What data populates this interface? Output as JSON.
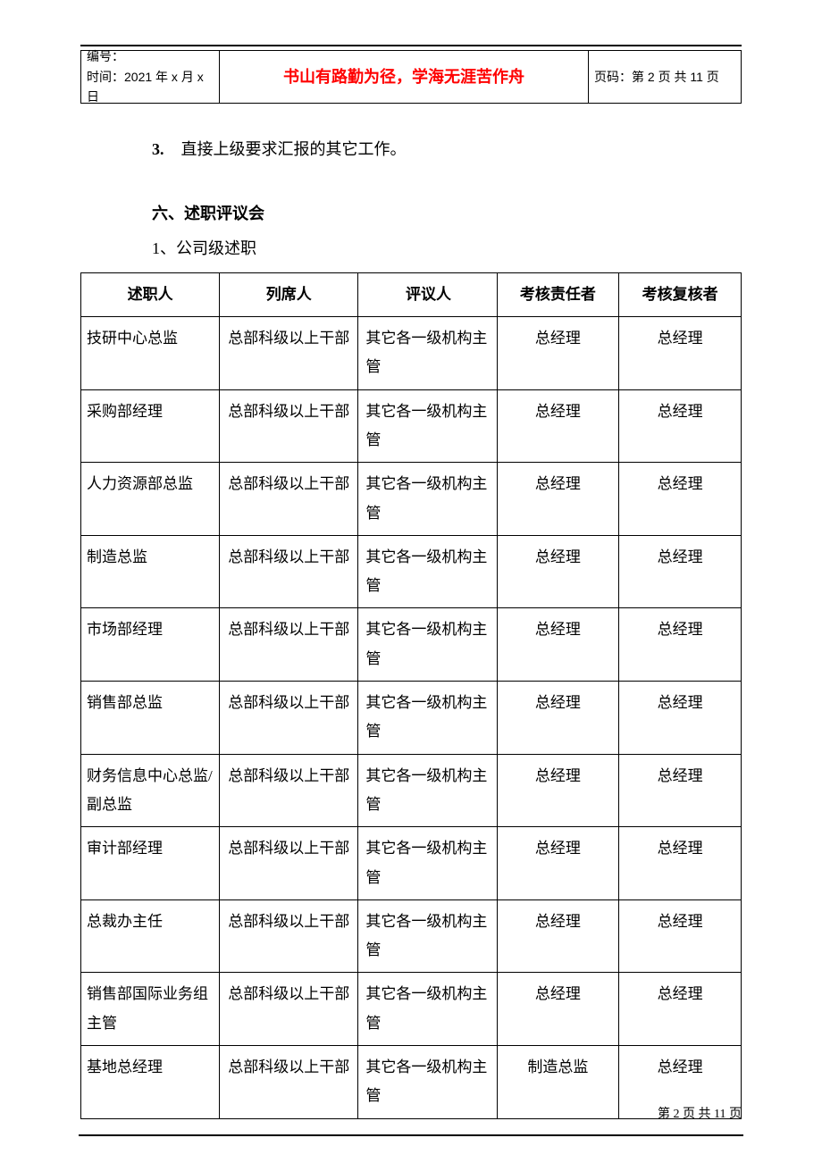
{
  "header": {
    "left_line1": "编号：",
    "left_line2": "时间：2021 年 x 月 x 日",
    "mid": "书山有路勤为径，学海无涯苦作舟",
    "right": "页码：第 2 页  共 11 页"
  },
  "body": {
    "item3_num": "3.",
    "item3_text": "直接上级要求汇报的其它工作。",
    "section6": "六、述职评议会",
    "subsection1": "1、公司级述职"
  },
  "table": {
    "background_color": "#ffffff",
    "border_color": "#000000",
    "font_size": 17,
    "column_widths_percent": [
      21,
      21,
      21,
      18.5,
      18.5
    ],
    "column_align": [
      "left",
      "center",
      "left",
      "center",
      "center"
    ],
    "columns": [
      "述职人",
      "列席人",
      "评议人",
      "考核责任者",
      "考核复核者"
    ],
    "rows": [
      [
        "技研中心总监",
        "总部科级以上干部",
        "其它各一级机构主管",
        "总经理",
        "总经理"
      ],
      [
        "采购部经理",
        "总部科级以上干部",
        "其它各一级机构主管",
        "总经理",
        "总经理"
      ],
      [
        "人力资源部总监",
        "总部科级以上干部",
        "其它各一级机构主管",
        "总经理",
        "总经理"
      ],
      [
        "制造总监",
        "总部科级以上干部",
        "其它各一级机构主管",
        "总经理",
        "总经理"
      ],
      [
        "市场部经理",
        "总部科级以上干部",
        "其它各一级机构主管",
        "总经理",
        "总经理"
      ],
      [
        "销售部总监",
        "总部科级以上干部",
        "其它各一级机构主管",
        "总经理",
        "总经理"
      ],
      [
        "财务信息中心总监/副总监",
        "总部科级以上干部",
        "其它各一级机构主管",
        "总经理",
        "总经理"
      ],
      [
        "审计部经理",
        "总部科级以上干部",
        "其它各一级机构主管",
        "总经理",
        "总经理"
      ],
      [
        "总裁办主任",
        "总部科级以上干部",
        "其它各一级机构主管",
        "总经理",
        "总经理"
      ],
      [
        "销售部国际业务组主管",
        "总部科级以上干部",
        "其它各一级机构主管",
        "总经理",
        "总经理"
      ],
      [
        "基地总经理",
        "总部科级以上干部",
        "其它各一级机构主管",
        "制造总监",
        "总经理"
      ]
    ]
  },
  "footer": {
    "text": "第  2  页  共  11  页"
  },
  "colors": {
    "text": "#000000",
    "accent": "#ff0000",
    "background": "#ffffff",
    "rule": "#000000"
  }
}
